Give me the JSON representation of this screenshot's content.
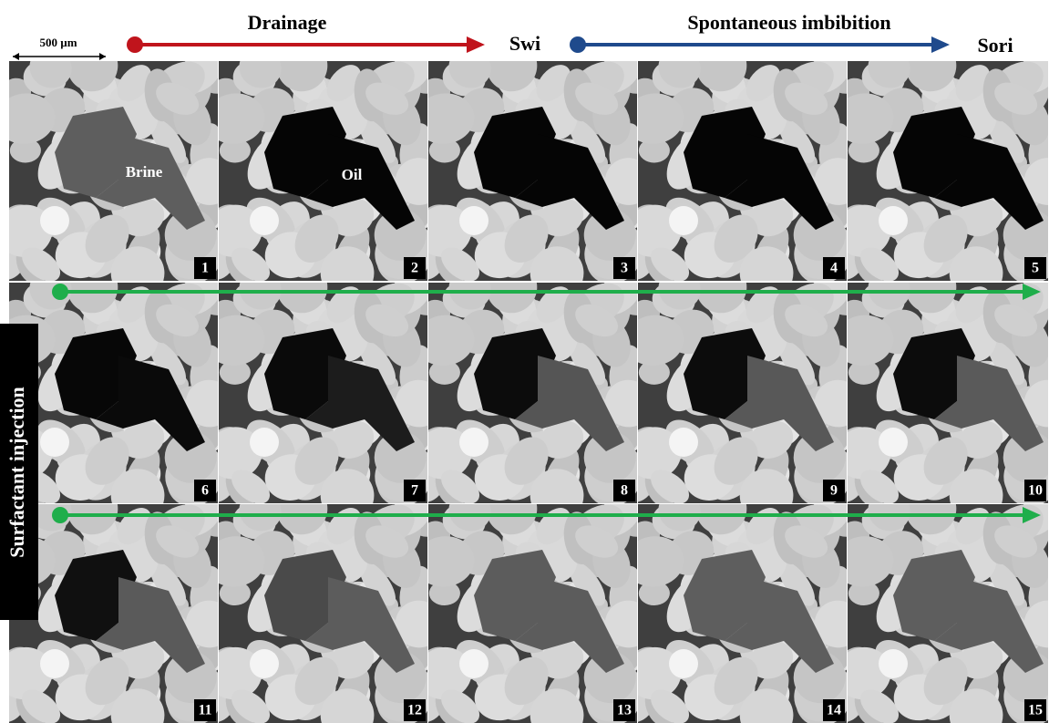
{
  "header": {
    "scale_bar": "500 µm",
    "drainage": "Drainage",
    "swi": "Swi",
    "imbibition": "Spontaneous imbibition",
    "sori": "Sori"
  },
  "side_label": "Surfactant injection",
  "annotations": {
    "brine": "Brine",
    "oil": "Oil"
  },
  "panels": [
    {
      "number": "1"
    },
    {
      "number": "2"
    },
    {
      "number": "3"
    },
    {
      "number": "4"
    },
    {
      "number": "5"
    },
    {
      "number": "6"
    },
    {
      "number": "7"
    },
    {
      "number": "8"
    },
    {
      "number": "9"
    },
    {
      "number": "10"
    },
    {
      "number": "11"
    },
    {
      "number": "12"
    },
    {
      "number": "13"
    },
    {
      "number": "14"
    },
    {
      "number": "15"
    }
  ]
}
